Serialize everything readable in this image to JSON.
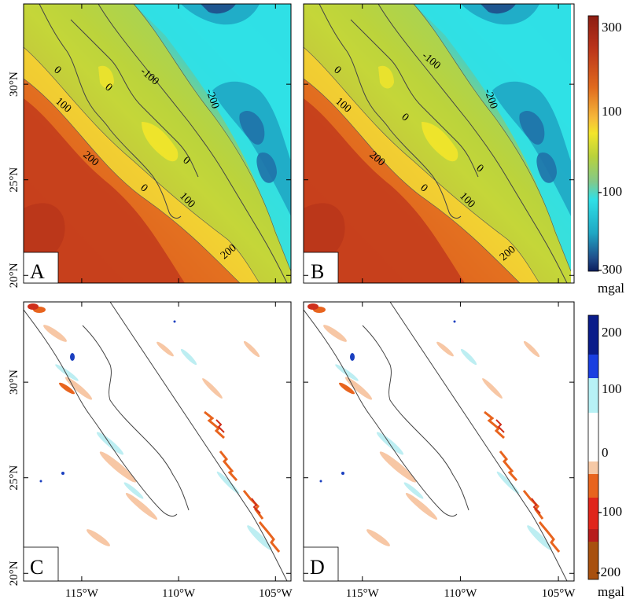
{
  "chart_data": [
    {
      "type": "heatmap",
      "panel": "A",
      "x_ticks": [
        "115°W",
        "110°W",
        "105°W"
      ],
      "y_ticks": [
        "20°N",
        "25°N",
        "30°N"
      ],
      "x_tick_values": [
        -115,
        -110,
        -105
      ],
      "y_tick_values": [
        20,
        25,
        30
      ],
      "xlim": [
        -118,
        -104.2
      ],
      "ylim": [
        19.6,
        34.2
      ],
      "contour_labels": [
        "-100",
        "0",
        "0",
        "0",
        "0",
        "100",
        "100",
        "-200",
        "200",
        "200"
      ]
    },
    {
      "type": "heatmap",
      "panel": "B",
      "x_ticks": [
        "115°W",
        "110°W",
        "105°W"
      ],
      "y_ticks": [
        "20°N",
        "25°N",
        "30°N"
      ],
      "xlim": [
        -118,
        -104.2
      ],
      "ylim": [
        19.6,
        34.2
      ],
      "contour_labels": [
        "-100",
        "0",
        "0",
        "0",
        "0",
        "100",
        "100",
        "-200",
        "200",
        "200"
      ]
    },
    {
      "type": "heatmap",
      "panel": "C",
      "x_ticks": [
        "115°W",
        "110°W",
        "105°W"
      ],
      "y_ticks": [
        "20°N",
        "25°N",
        "30°N"
      ],
      "xlim": [
        -118,
        -104.2
      ],
      "ylim": [
        19.6,
        34.2
      ]
    },
    {
      "type": "heatmap",
      "panel": "D",
      "x_ticks": [
        "115°W",
        "110°W",
        "105°W"
      ],
      "y_ticks": [
        "20°N",
        "25°N",
        "30°N"
      ],
      "xlim": [
        -118,
        -104.2
      ],
      "ylim": [
        19.6,
        34.2
      ]
    }
  ],
  "colorbar_top": {
    "labels": [
      "300",
      "100",
      "-100",
      "-300"
    ],
    "unit": "mgal",
    "range": [
      -300,
      300
    ]
  },
  "colorbar_bottom": {
    "labels": [
      "200",
      "100",
      "0",
      "-100",
      "-200"
    ],
    "unit": "mgal",
    "range": [
      -200,
      200
    ]
  },
  "colors": {
    "deep_red": "#b8321a",
    "orange": "#e06a1e",
    "yellow": "#f3e52a",
    "green_yellow": "#b9d23b",
    "cyan": "#2fe0e6",
    "teal": "#1fa7c4",
    "navy": "#1f4c8a"
  }
}
